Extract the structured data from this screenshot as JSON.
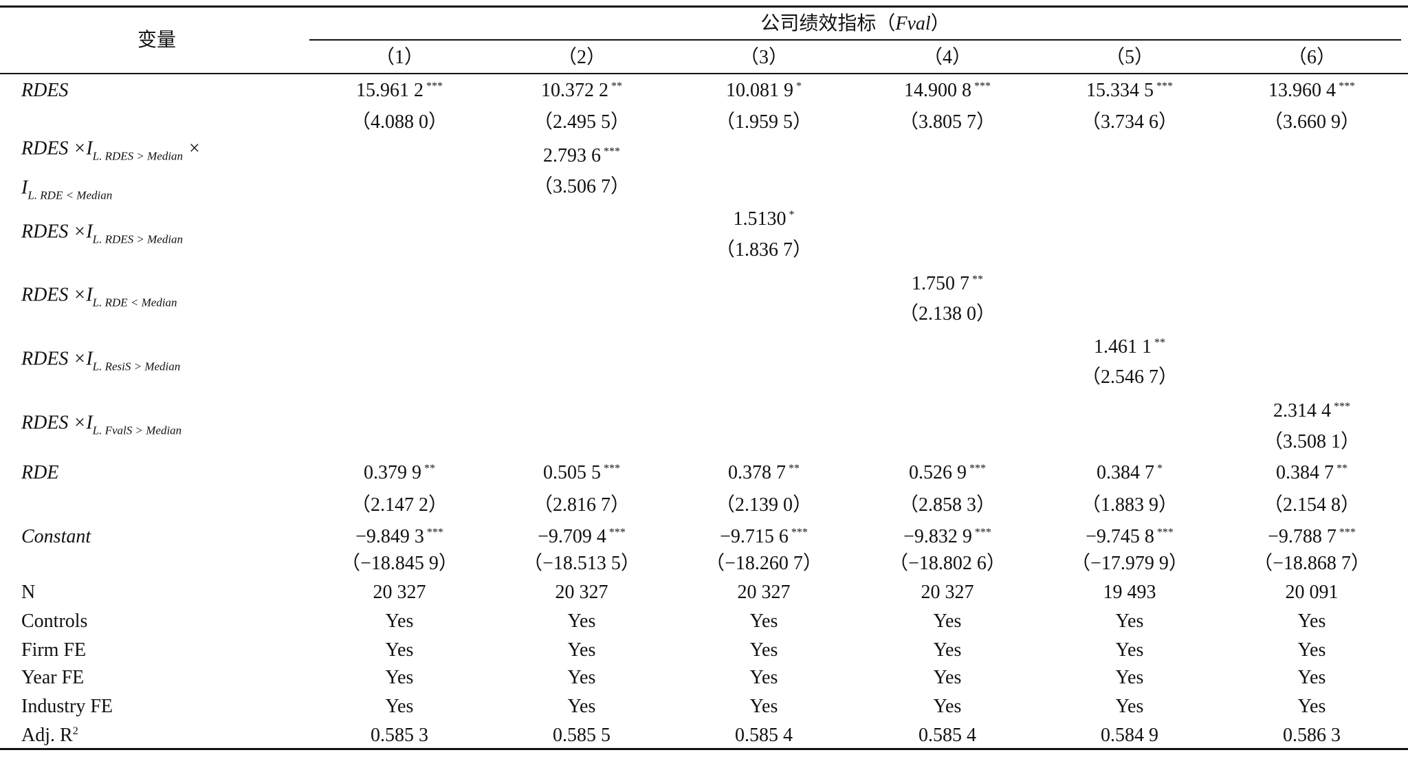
{
  "header": {
    "variable": "变量",
    "group_prefix": "公司绩效指标（",
    "group_symbol": "Fval",
    "group_suffix": "）",
    "columns": [
      "（1）",
      "（2）",
      "（3）",
      "（4）",
      "（5）",
      "（6）"
    ]
  },
  "variable_rows": [
    {
      "label": [
        [
          {
            "text": "RDES"
          }
        ]
      ],
      "cells": [
        {
          "coef": "15.961 2",
          "stars": "***",
          "t": "（4.088 0）"
        },
        {
          "coef": "10.372 2",
          "stars": "**",
          "t": "（2.495 5）"
        },
        {
          "coef": "10.081 9",
          "stars": "*",
          "t": "（1.959 5）"
        },
        {
          "coef": "14.900 8",
          "stars": "***",
          "t": "（3.805 7）"
        },
        {
          "coef": "15.334 5",
          "stars": "***",
          "t": "（3.734 6）"
        },
        {
          "coef": "13.960 4",
          "stars": "***",
          "t": "（3.660 9）"
        }
      ]
    },
    {
      "label": [
        [
          {
            "text": "RDES ×I"
          },
          {
            "sub": "L. RDES > Median"
          },
          {
            "text": " ×"
          }
        ],
        [
          {
            "text": "I"
          },
          {
            "sub": "L. RDE < Median"
          }
        ]
      ],
      "cells": [
        null,
        {
          "coef": "2.793 6",
          "stars": "***",
          "t": "（3.506 7）"
        },
        null,
        null,
        null,
        null
      ]
    },
    {
      "label": [
        [
          {
            "text": "RDES ×I"
          },
          {
            "sub": "L. RDES > Median"
          }
        ]
      ],
      "cells": [
        null,
        null,
        {
          "coef": "1.5130",
          "stars": "*",
          "t": "（1.836 7）"
        },
        null,
        null,
        null
      ]
    },
    {
      "label": [
        [
          {
            "text": "RDES ×I"
          },
          {
            "sub": "L. RDE < Median"
          }
        ]
      ],
      "cells": [
        null,
        null,
        null,
        {
          "coef": "1.750 7",
          "stars": "**",
          "t": "（2.138 0）"
        },
        null,
        null
      ]
    },
    {
      "label": [
        [
          {
            "text": "RDES ×I"
          },
          {
            "sub": "L. ResiS > Median"
          }
        ]
      ],
      "cells": [
        null,
        null,
        null,
        null,
        {
          "coef": "1.461 1",
          "stars": "**",
          "t": "（2.546 7）"
        },
        null
      ]
    },
    {
      "label": [
        [
          {
            "text": "RDES ×I"
          },
          {
            "sub": "L. FvalS > Median"
          }
        ]
      ],
      "cells": [
        null,
        null,
        null,
        null,
        null,
        {
          "coef": "2.314 4",
          "stars": "***",
          "t": "（3.508 1）"
        }
      ]
    },
    {
      "label": [
        [
          {
            "text": "RDE"
          }
        ]
      ],
      "cells": [
        {
          "coef": "0.379 9",
          "stars": "**",
          "t": "（2.147 2）"
        },
        {
          "coef": "0.505 5",
          "stars": "***",
          "t": "（2.816 7）"
        },
        {
          "coef": "0.378 7",
          "stars": "**",
          "t": "（2.139 0）"
        },
        {
          "coef": "0.526 9",
          "stars": "***",
          "t": "（2.858 3）"
        },
        {
          "coef": "0.384 7",
          "stars": "*",
          "t": "（1.883 9）"
        },
        {
          "coef": "0.384 7",
          "stars": "**",
          "t": "（2.154 8）"
        }
      ]
    },
    {
      "label": [
        [
          {
            "text": "Constant"
          }
        ]
      ],
      "cells": [
        {
          "coef": "−9.849 3",
          "stars": "***",
          "t": "（−18.845 9）"
        },
        {
          "coef": "−9.709 4",
          "stars": "***",
          "t": "（−18.513 5）"
        },
        {
          "coef": "−9.715 6",
          "stars": "***",
          "t": "（−18.260 7）"
        },
        {
          "coef": "−9.832 9",
          "stars": "***",
          "t": "（−18.802 6）"
        },
        {
          "coef": "−9.745 8",
          "stars": "***",
          "t": "（−17.979 9）"
        },
        {
          "coef": "−9.788 7",
          "stars": "***",
          "t": "（−18.868 7）"
        }
      ]
    }
  ],
  "stat_rows": [
    {
      "label": [
        {
          "text": "N"
        }
      ],
      "values": [
        "20 327",
        "20 327",
        "20 327",
        "20 327",
        "19 493",
        "20 091"
      ]
    },
    {
      "label": [
        {
          "text": "Controls"
        }
      ],
      "values": [
        "Yes",
        "Yes",
        "Yes",
        "Yes",
        "Yes",
        "Yes"
      ]
    },
    {
      "label": [
        {
          "text": "Firm FE"
        }
      ],
      "values": [
        "Yes",
        "Yes",
        "Yes",
        "Yes",
        "Yes",
        "Yes"
      ]
    },
    {
      "label": [
        {
          "text": "Year FE"
        }
      ],
      "values": [
        "Yes",
        "Yes",
        "Yes",
        "Yes",
        "Yes",
        "Yes"
      ]
    },
    {
      "label": [
        {
          "text": "Industry FE"
        }
      ],
      "values": [
        "Yes",
        "Yes",
        "Yes",
        "Yes",
        "Yes",
        "Yes"
      ]
    },
    {
      "label": [
        {
          "text": "Adj. R"
        },
        {
          "sup": "2"
        }
      ],
      "values": [
        "0.585 3",
        "0.585 5",
        "0.585 4",
        "0.585 4",
        "0.584 9",
        "0.586 3"
      ]
    }
  ]
}
